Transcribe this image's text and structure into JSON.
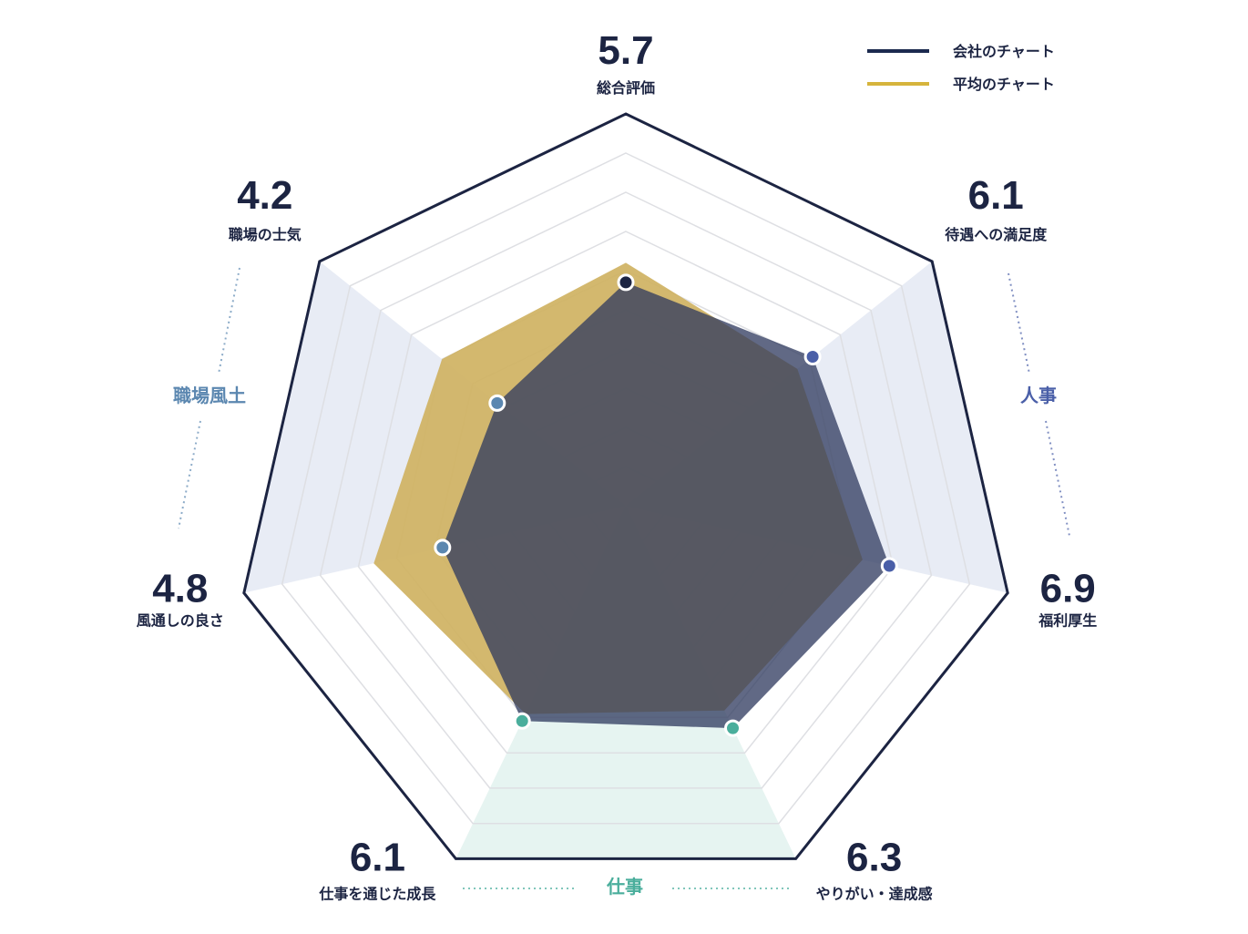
{
  "chart_data": {
    "type": "radar",
    "title": "",
    "rmax": 10,
    "axes": [
      {
        "label": "総合評価",
        "score": "5.7",
        "company": 5.7,
        "average": 6.2
      },
      {
        "label": "待遇への満足度",
        "score": "6.1",
        "company": 6.1,
        "average": 5.6
      },
      {
        "label": "福利厚生",
        "score": "6.9",
        "company": 6.9,
        "average": 6.2
      },
      {
        "label": "やりがい・達成感",
        "score": "6.3",
        "company": 6.3,
        "average": 5.8
      },
      {
        "label": "仕事を通じた成長",
        "score": "6.1",
        "company": 6.1,
        "average": 5.9
      },
      {
        "label": "風通しの良さ",
        "score": "4.8",
        "company": 4.8,
        "average": 6.6
      },
      {
        "label": "職場の士気",
        "score": "4.2",
        "company": 4.2,
        "average": 6.0
      }
    ],
    "series": [
      {
        "name": "会社のチャート",
        "color": "#1c2a4f",
        "fill": "#2f3a5e"
      },
      {
        "name": "平均のチャート",
        "color": "#d6b43c",
        "fill": "#cfb262"
      }
    ],
    "groups": [
      {
        "label": "人事",
        "axes": [
          1,
          2
        ],
        "color": "#4a5fa8",
        "band": "#e8ecf5"
      },
      {
        "label": "仕事",
        "axes": [
          3,
          4
        ],
        "color": "#4aae9c",
        "band": "#e6f4f1"
      },
      {
        "label": "職場風土",
        "axes": [
          5,
          6
        ],
        "color": "#5b87b0",
        "band": "#e8ecf5"
      }
    ],
    "top_point_color": "#1c2442"
  },
  "legend": {
    "company_label": "会社のチャート",
    "average_label": "平均のチャート"
  }
}
